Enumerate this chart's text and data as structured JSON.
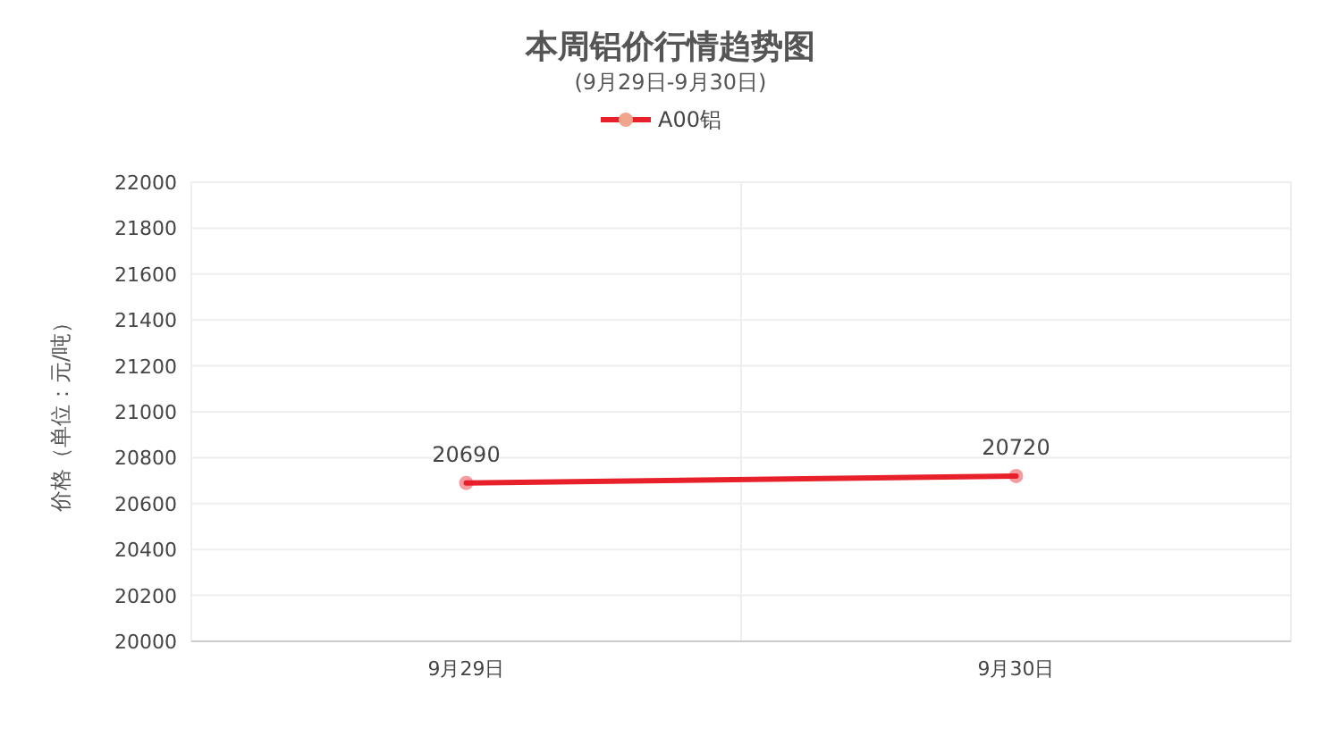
{
  "chart_data": {
    "type": "line",
    "title": "本周铝价行情趋势图",
    "subtitle": "(9月29日-9月30日)",
    "ylabel": "价格（单位：元/吨）",
    "categories": [
      "9月29日",
      "9月30日"
    ],
    "series": [
      {
        "name": "A00铝",
        "color": "#e8202a",
        "values": [
          20690,
          20720
        ]
      }
    ],
    "ylim": [
      20000,
      22000
    ],
    "yticks": [
      20000,
      20200,
      20400,
      20600,
      20800,
      21000,
      21200,
      21400,
      21600,
      21800,
      22000
    ],
    "grid": true,
    "legend": "top",
    "marker": "circle",
    "line_style": "solid",
    "data_labels": true
  }
}
